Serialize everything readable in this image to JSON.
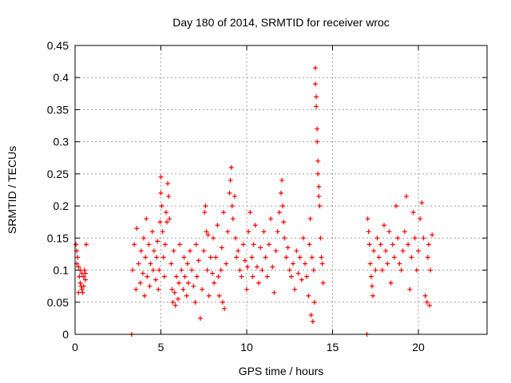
{
  "chart_data": {
    "type": "scatter",
    "title": "Day 180 of 2014, SRMTID for receiver wroc",
    "xlabel": "GPS time / hours",
    "ylabel": "SRMTID / TECUs",
    "xlim": [
      0,
      24
    ],
    "ylim": [
      0,
      0.45
    ],
    "grid": true,
    "marker": "+",
    "color": "#ff0000",
    "xticks": [
      0,
      5,
      10,
      15,
      20
    ],
    "xtick_labels": [
      "0",
      "5",
      "10",
      "15",
      "20"
    ],
    "yticks": [
      0,
      0.05,
      0.1,
      0.15,
      0.2,
      0.25,
      0.3,
      0.35,
      0.4,
      0.45
    ],
    "ytick_labels": [
      "0",
      "0.05",
      "0.1",
      "0.15",
      "0.2",
      "0.25",
      "0.3",
      "0.35",
      "0.4",
      "0.45"
    ],
    "series": [
      {
        "name": "SRMTID",
        "points": [
          [
            0.05,
            0.14
          ],
          [
            0.1,
            0.13
          ],
          [
            0.15,
            0.12
          ],
          [
            0.2,
            0.105
          ],
          [
            0.25,
            0.09
          ],
          [
            0.3,
            0.08
          ],
          [
            0.35,
            0.075
          ],
          [
            0.4,
            0.07
          ],
          [
            0.45,
            0.065
          ],
          [
            0.5,
            0.09
          ],
          [
            0.55,
            0.1
          ],
          [
            0.6,
            0.085
          ],
          [
            0.65,
            0.14
          ],
          [
            0.1,
            0.11
          ],
          [
            0.2,
            0.065
          ],
          [
            0.3,
            0.1
          ],
          [
            0.4,
            0.095
          ],
          [
            0.5,
            0.075
          ],
          [
            0.6,
            0.095
          ],
          [
            3.3,
            0.0
          ],
          [
            17.0,
            0.0
          ],
          [
            3.35,
            0.1
          ],
          [
            3.45,
            0.14
          ],
          [
            3.55,
            0.07
          ],
          [
            3.6,
            0.165
          ],
          [
            3.7,
            0.11
          ],
          [
            3.8,
            0.08
          ],
          [
            3.85,
            0.13
          ],
          [
            3.95,
            0.095
          ],
          [
            4.0,
            0.15
          ],
          [
            4.05,
            0.06
          ],
          [
            4.1,
            0.12
          ],
          [
            4.15,
            0.18
          ],
          [
            4.2,
            0.09
          ],
          [
            4.3,
            0.14
          ],
          [
            4.35,
            0.075
          ],
          [
            4.4,
            0.11
          ],
          [
            4.5,
            0.16
          ],
          [
            4.55,
            0.1
          ],
          [
            4.6,
            0.13
          ],
          [
            4.7,
            0.085
          ],
          [
            4.75,
            0.12
          ],
          [
            4.8,
            0.145
          ],
          [
            4.85,
            0.07
          ],
          [
            4.9,
            0.1
          ],
          [
            4.95,
            0.175
          ],
          [
            5.0,
            0.245
          ],
          [
            5.0,
            0.22
          ],
          [
            5.05,
            0.2
          ],
          [
            5.1,
            0.16
          ],
          [
            5.15,
            0.12
          ],
          [
            5.2,
            0.09
          ],
          [
            5.25,
            0.14
          ],
          [
            5.3,
            0.19
          ],
          [
            5.35,
            0.175
          ],
          [
            5.4,
            0.235
          ],
          [
            5.45,
            0.215
          ],
          [
            5.5,
            0.18
          ],
          [
            5.6,
            0.11
          ],
          [
            5.65,
            0.07
          ],
          [
            5.7,
            0.05
          ],
          [
            5.75,
            0.13
          ],
          [
            5.8,
            0.065
          ],
          [
            5.85,
            0.045
          ],
          [
            5.9,
            0.09
          ],
          [
            6.0,
            0.055
          ],
          [
            6.05,
            0.08
          ],
          [
            6.1,
            0.14
          ],
          [
            6.2,
            0.1
          ],
          [
            6.3,
            0.07
          ],
          [
            6.35,
            0.12
          ],
          [
            6.4,
            0.09
          ],
          [
            6.5,
            0.06
          ],
          [
            6.55,
            0.11
          ],
          [
            6.6,
            0.08
          ],
          [
            6.7,
            0.13
          ],
          [
            6.8,
            0.1
          ],
          [
            6.9,
            0.075
          ],
          [
            7.0,
            0.05
          ],
          [
            7.05,
            0.14
          ],
          [
            7.1,
            0.09
          ],
          [
            7.2,
            0.115
          ],
          [
            7.3,
            0.025
          ],
          [
            7.4,
            0.07
          ],
          [
            7.5,
            0.13
          ],
          [
            7.55,
            0.19
          ],
          [
            7.6,
            0.2
          ],
          [
            7.65,
            0.16
          ],
          [
            7.7,
            0.1
          ],
          [
            7.75,
            0.155
          ],
          [
            7.8,
            0.06
          ],
          [
            7.9,
            0.12
          ],
          [
            8.0,
            0.095
          ],
          [
            8.05,
            0.15
          ],
          [
            8.1,
            0.08
          ],
          [
            8.2,
            0.12
          ],
          [
            8.3,
            0.17
          ],
          [
            8.35,
            0.09
          ],
          [
            8.4,
            0.06
          ],
          [
            8.5,
            0.1
          ],
          [
            8.55,
            0.135
          ],
          [
            8.6,
            0.05
          ],
          [
            8.65,
            0.19
          ],
          [
            8.7,
            0.04
          ],
          [
            8.8,
            0.11
          ],
          [
            8.9,
            0.16
          ],
          [
            9.0,
            0.22
          ],
          [
            9.05,
            0.24
          ],
          [
            9.1,
            0.26
          ],
          [
            9.15,
            0.2
          ],
          [
            9.2,
            0.18
          ],
          [
            9.3,
            0.215
          ],
          [
            9.35,
            0.15
          ],
          [
            9.4,
            0.12
          ],
          [
            9.5,
            0.13
          ],
          [
            9.6,
            0.1
          ],
          [
            9.7,
            0.09
          ],
          [
            9.8,
            0.14
          ],
          [
            9.9,
            0.115
          ],
          [
            10.0,
            0.07
          ],
          [
            10.05,
            0.105
          ],
          [
            10.1,
            0.16
          ],
          [
            10.2,
            0.19
          ],
          [
            10.3,
            0.12
          ],
          [
            10.35,
            0.09
          ],
          [
            10.4,
            0.14
          ],
          [
            10.5,
            0.17
          ],
          [
            10.6,
            0.105
          ],
          [
            10.7,
            0.08
          ],
          [
            10.8,
            0.135
          ],
          [
            10.9,
            0.1
          ],
          [
            11.0,
            0.16
          ],
          [
            11.1,
            0.12
          ],
          [
            11.2,
            0.09
          ],
          [
            11.3,
            0.14
          ],
          [
            11.4,
            0.18
          ],
          [
            11.5,
            0.105
          ],
          [
            11.6,
            0.065
          ],
          [
            11.7,
            0.13
          ],
          [
            11.8,
            0.16
          ],
          [
            11.9,
            0.19
          ],
          [
            12.0,
            0.22
          ],
          [
            12.05,
            0.24
          ],
          [
            12.1,
            0.2
          ],
          [
            12.15,
            0.175
          ],
          [
            12.2,
            0.15
          ],
          [
            12.3,
            0.12
          ],
          [
            12.4,
            0.135
          ],
          [
            12.5,
            0.1
          ],
          [
            12.6,
            0.09
          ],
          [
            12.7,
            0.11
          ],
          [
            12.8,
            0.07
          ],
          [
            12.9,
            0.13
          ],
          [
            13.0,
            0.095
          ],
          [
            13.1,
            0.12
          ],
          [
            13.2,
            0.085
          ],
          [
            13.3,
            0.15
          ],
          [
            13.4,
            0.11
          ],
          [
            13.5,
            0.09
          ],
          [
            13.6,
            0.06
          ],
          [
            13.65,
            0.14
          ],
          [
            13.7,
            0.18
          ],
          [
            13.75,
            0.03
          ],
          [
            13.8,
            0.12
          ],
          [
            13.85,
            0.02
          ],
          [
            13.9,
            0.1
          ],
          [
            13.95,
            0.05
          ],
          [
            14.0,
            0.415
          ],
          [
            14.0,
            0.39
          ],
          [
            14.05,
            0.37
          ],
          [
            14.05,
            0.355
          ],
          [
            14.1,
            0.32
          ],
          [
            14.1,
            0.3
          ],
          [
            14.15,
            0.27
          ],
          [
            14.15,
            0.25
          ],
          [
            14.2,
            0.23
          ],
          [
            14.2,
            0.215
          ],
          [
            14.25,
            0.2
          ],
          [
            14.3,
            0.15
          ],
          [
            14.35,
            0.12
          ],
          [
            14.4,
            0.11
          ],
          [
            14.45,
            0.08
          ],
          [
            17.05,
            0.18
          ],
          [
            17.1,
            0.16
          ],
          [
            17.15,
            0.14
          ],
          [
            17.2,
            0.11
          ],
          [
            17.25,
            0.09
          ],
          [
            17.3,
            0.075
          ],
          [
            17.35,
            0.06
          ],
          [
            17.4,
            0.13
          ],
          [
            17.5,
            0.1
          ],
          [
            17.6,
            0.15
          ],
          [
            17.7,
            0.12
          ],
          [
            17.8,
            0.14
          ],
          [
            17.9,
            0.1
          ],
          [
            18.0,
            0.17
          ],
          [
            18.1,
            0.13
          ],
          [
            18.2,
            0.11
          ],
          [
            18.3,
            0.16
          ],
          [
            18.4,
            0.08
          ],
          [
            18.5,
            0.14
          ],
          [
            18.6,
            0.12
          ],
          [
            18.7,
            0.2
          ],
          [
            18.8,
            0.15
          ],
          [
            18.9,
            0.11
          ],
          [
            19.0,
            0.1
          ],
          [
            19.1,
            0.13
          ],
          [
            19.2,
            0.16
          ],
          [
            19.3,
            0.215
          ],
          [
            19.4,
            0.14
          ],
          [
            19.5,
            0.07
          ],
          [
            19.6,
            0.12
          ],
          [
            19.7,
            0.19
          ],
          [
            19.8,
            0.15
          ],
          [
            19.9,
            0.1
          ],
          [
            20.0,
            0.13
          ],
          [
            20.1,
            0.18
          ],
          [
            20.2,
            0.205
          ],
          [
            20.3,
            0.15
          ],
          [
            20.4,
            0.06
          ],
          [
            20.5,
            0.05
          ],
          [
            20.55,
            0.12
          ],
          [
            20.6,
            0.14
          ],
          [
            20.65,
            0.045
          ],
          [
            20.7,
            0.1
          ],
          [
            20.8,
            0.155
          ]
        ]
      }
    ]
  }
}
